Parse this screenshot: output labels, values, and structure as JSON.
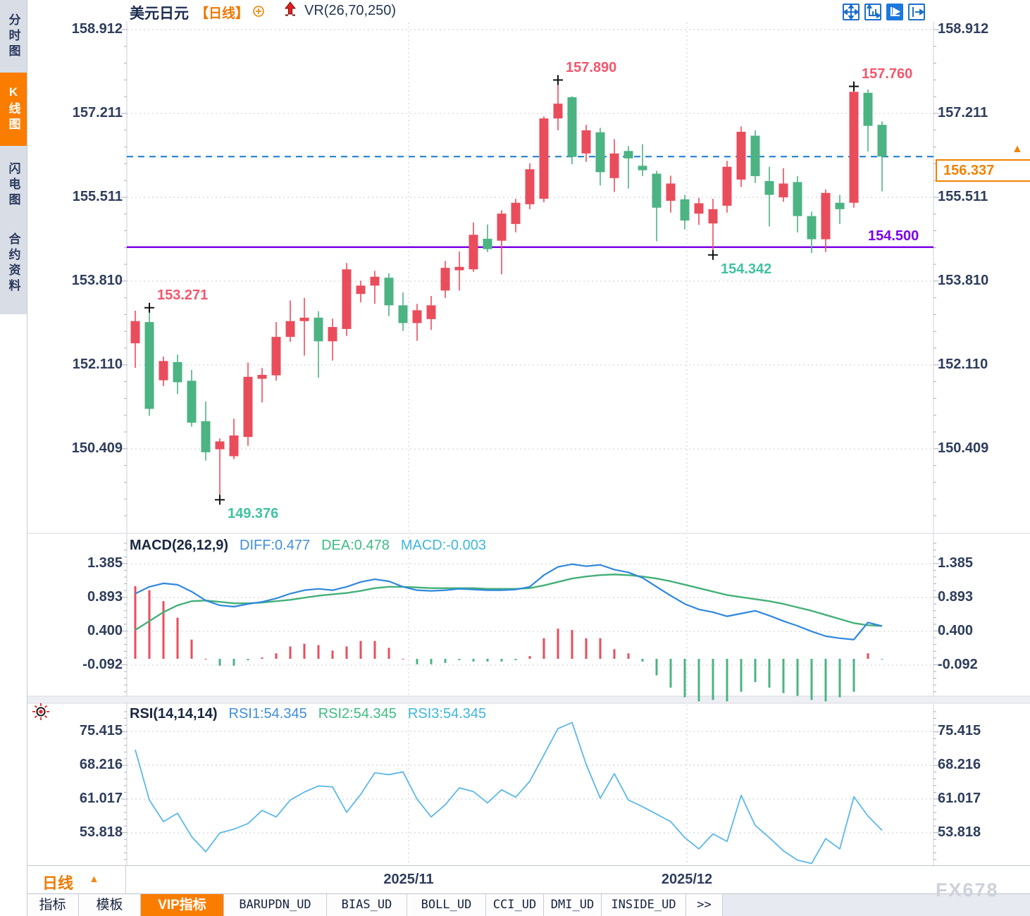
{
  "header": {
    "title": "美元日元",
    "period_tag": "【日线】",
    "indicator": "VR(26,70,250)",
    "plus_icon": "circle-plus",
    "arrow_icon": "red-up-arrow"
  },
  "toolbar": {
    "icons": [
      {
        "name": "crosshair-move",
        "active": false
      },
      {
        "name": "axis-scale",
        "active": false
      },
      {
        "name": "auto-scale-chart",
        "active": true
      },
      {
        "name": "pan-to-latest",
        "active": false
      }
    ]
  },
  "sidebar": {
    "items": [
      {
        "label": "分时图",
        "active": false
      },
      {
        "label": "K线图",
        "active": true
      },
      {
        "label": "闪电图",
        "active": false
      },
      {
        "label": "合约资料",
        "active": false
      }
    ]
  },
  "price_panel": {
    "y_ticks": [
      "158.912",
      "157.211",
      "155.511",
      "153.810",
      "152.110",
      "150.409"
    ],
    "y_values": [
      158.912,
      157.211,
      155.511,
      153.81,
      152.11,
      150.409
    ],
    "current_price": "156.337",
    "current_price_value": 156.337,
    "current_arrow": "▲",
    "support_line": {
      "label": "154.500",
      "value": 154.5
    },
    "annotations": [
      {
        "text": "153.271",
        "candle": 2,
        "pos": "high",
        "color": "pink"
      },
      {
        "text": "149.376",
        "candle": 7,
        "pos": "low",
        "color": "teal"
      },
      {
        "text": "157.890",
        "candle": 31,
        "pos": "high",
        "color": "pink"
      },
      {
        "text": "154.342",
        "candle": 42,
        "pos": "low",
        "color": "teal"
      },
      {
        "text": "157.760",
        "candle": 52,
        "pos": "high",
        "color": "pink"
      }
    ]
  },
  "macd_panel": {
    "title": "MACD(26,12,9)",
    "diff_label": "DIFF:0.477",
    "dea_label": "DEA:0.478",
    "macd_label": "MACD:-0.003",
    "y_ticks": [
      "1.385",
      "0.893",
      "0.400",
      "-0.092"
    ],
    "y_values": [
      1.385,
      0.893,
      0.4,
      -0.092
    ]
  },
  "rsi_panel": {
    "title": "RSI(14,14,14)",
    "rsi1_label": "RSI1:54.345",
    "rsi2_label": "RSI2:54.345",
    "rsi3_label": "RSI3:54.345",
    "y_ticks": [
      "75.415",
      "68.216",
      "61.017",
      "53.818"
    ],
    "y_values": [
      75.415,
      68.216,
      61.017,
      53.818
    ]
  },
  "bottom": {
    "period_label": "日线",
    "period_arrow": "▲",
    "tabs": [
      {
        "label": "指标",
        "active": false,
        "mono": false
      },
      {
        "label": "模板",
        "active": false,
        "mono": false
      },
      {
        "label": "VIP指标",
        "active": true,
        "mono": false
      },
      {
        "label": "BARUPDN_UD",
        "active": false,
        "mono": true
      },
      {
        "label": "BIAS_UD",
        "active": false,
        "mono": true
      },
      {
        "label": "BOLL_UD",
        "active": false,
        "mono": true
      },
      {
        "label": "CCI_UD",
        "active": false,
        "mono": true
      },
      {
        "label": "DMI_UD",
        "active": false,
        "mono": true
      },
      {
        "label": "INSIDE_UD",
        "active": false,
        "mono": true
      },
      {
        "label": ">>",
        "active": false,
        "mono": true
      }
    ]
  },
  "watermark": "FX678",
  "colors": {
    "up": "#e94d5c",
    "down": "#4cb383",
    "blue_dashed_line": "#1778d0",
    "purple_line": "#7b00e8",
    "accent_orange": "#fb7d00",
    "price_box_orange": "#f08200",
    "diff_blue": "#2f87dd",
    "dea_green": "#44b078",
    "rsi_line": "#5cb8e8",
    "annotation_pink": "#f4566c",
    "annotation_teal": "#3fc2a2",
    "axis_text": "#2e3d5c",
    "grid": "#d8dbe0"
  },
  "chart_data": {
    "type": "candlestick",
    "symbol": "美元日元",
    "period": "日线",
    "legend": "VR(26,70,250)",
    "price_ticks": [
      158.912,
      157.211,
      155.511,
      153.81,
      152.11,
      150.409
    ],
    "levels": {
      "current_close": 156.337,
      "support": 154.5
    },
    "x_labels": [
      {
        "text": "2025/11",
        "index": 19.4
      },
      {
        "text": "2025/12",
        "index": 39.15
      }
    ],
    "candles_ohlc": [
      [
        152.55,
        153.21,
        152.05,
        153.0
      ],
      [
        152.98,
        153.271,
        151.08,
        151.22
      ],
      [
        151.8,
        152.28,
        151.68,
        152.19
      ],
      [
        152.17,
        152.32,
        151.52,
        151.76
      ],
      [
        151.79,
        152.01,
        150.86,
        150.94
      ],
      [
        150.97,
        151.37,
        150.17,
        150.34
      ],
      [
        150.4,
        150.62,
        149.376,
        150.56
      ],
      [
        150.26,
        151.02,
        150.2,
        150.68
      ],
      [
        150.65,
        152.16,
        150.47,
        151.87
      ],
      [
        151.83,
        152.05,
        151.35,
        151.91
      ],
      [
        151.9,
        152.98,
        151.79,
        152.68
      ],
      [
        152.68,
        153.42,
        152.58,
        153.0
      ],
      [
        153.0,
        153.47,
        152.3,
        153.07
      ],
      [
        153.07,
        153.2,
        151.85,
        152.59
      ],
      [
        152.59,
        153.05,
        152.2,
        152.88
      ],
      [
        152.84,
        154.18,
        152.7,
        154.05
      ],
      [
        153.55,
        153.82,
        153.38,
        153.72
      ],
      [
        153.72,
        154.02,
        153.35,
        153.9
      ],
      [
        153.88,
        153.97,
        153.1,
        153.32
      ],
      [
        153.32,
        153.58,
        152.8,
        152.96
      ],
      [
        152.96,
        153.35,
        152.6,
        153.22
      ],
      [
        153.04,
        153.51,
        152.82,
        153.32
      ],
      [
        153.62,
        154.22,
        153.47,
        154.08
      ],
      [
        154.03,
        154.41,
        153.62,
        154.1
      ],
      [
        154.05,
        155.0,
        154.0,
        154.75
      ],
      [
        154.67,
        154.96,
        154.4,
        154.46
      ],
      [
        154.63,
        155.25,
        153.95,
        155.18
      ],
      [
        154.97,
        155.48,
        154.8,
        155.4
      ],
      [
        155.37,
        156.2,
        155.27,
        156.08
      ],
      [
        155.48,
        157.15,
        155.41,
        157.11
      ],
      [
        157.11,
        157.89,
        156.87,
        157.41
      ],
      [
        157.54,
        157.56,
        156.18,
        156.33
      ],
      [
        156.4,
        156.98,
        156.23,
        156.87
      ],
      [
        156.83,
        156.92,
        155.75,
        156.02
      ],
      [
        155.9,
        156.69,
        155.62,
        156.4
      ],
      [
        156.45,
        156.55,
        155.69,
        156.3
      ],
      [
        156.15,
        156.59,
        155.94,
        156.06
      ],
      [
        155.99,
        156.05,
        154.62,
        155.3
      ],
      [
        155.44,
        155.95,
        155.2,
        155.79
      ],
      [
        155.47,
        155.56,
        154.86,
        155.04
      ],
      [
        155.18,
        155.5,
        154.95,
        155.39
      ],
      [
        154.98,
        155.48,
        154.342,
        155.27
      ],
      [
        155.34,
        156.25,
        155.2,
        156.13
      ],
      [
        155.87,
        156.95,
        155.72,
        156.84
      ],
      [
        156.76,
        156.87,
        155.8,
        155.94
      ],
      [
        155.84,
        156.13,
        154.92,
        155.56
      ],
      [
        155.51,
        156.1,
        155.42,
        155.79
      ],
      [
        155.82,
        155.94,
        154.8,
        155.13
      ],
      [
        155.13,
        155.22,
        154.38,
        154.66
      ],
      [
        154.66,
        155.67,
        154.4,
        155.6
      ],
      [
        155.4,
        155.56,
        154.97,
        155.27
      ],
      [
        155.4,
        157.76,
        155.3,
        157.65
      ],
      [
        157.63,
        157.7,
        156.44,
        156.96
      ],
      [
        156.98,
        157.05,
        155.63,
        156.337
      ]
    ],
    "macd": {
      "diff": [
        0.95,
        1.05,
        1.1,
        1.08,
        0.98,
        0.85,
        0.78,
        0.76,
        0.8,
        0.83,
        0.88,
        0.95,
        1.0,
        1.02,
        1.0,
        1.05,
        1.12,
        1.16,
        1.13,
        1.05,
        1.0,
        0.99,
        1.0,
        1.02,
        1.01,
        1.0,
        1.0,
        1.01,
        1.05,
        1.22,
        1.34,
        1.38,
        1.35,
        1.37,
        1.3,
        1.26,
        1.18,
        1.05,
        0.92,
        0.8,
        0.72,
        0.68,
        0.62,
        0.66,
        0.7,
        0.63,
        0.55,
        0.48,
        0.4,
        0.33,
        0.3,
        0.28,
        0.53,
        0.477
      ],
      "dea": [
        0.42,
        0.55,
        0.68,
        0.78,
        0.84,
        0.85,
        0.83,
        0.81,
        0.81,
        0.82,
        0.84,
        0.86,
        0.89,
        0.92,
        0.94,
        0.96,
        0.99,
        1.03,
        1.05,
        1.05,
        1.04,
        1.03,
        1.03,
        1.03,
        1.03,
        1.02,
        1.02,
        1.02,
        1.03,
        1.07,
        1.12,
        1.17,
        1.2,
        1.22,
        1.23,
        1.22,
        1.2,
        1.17,
        1.13,
        1.08,
        1.03,
        0.98,
        0.93,
        0.9,
        0.87,
        0.84,
        0.8,
        0.75,
        0.7,
        0.64,
        0.58,
        0.52,
        0.49,
        0.478
      ],
      "hist": [
        1.06,
        1.0,
        0.84,
        0.6,
        0.28,
        0.0,
        -0.1,
        -0.1,
        -0.02,
        0.02,
        0.08,
        0.18,
        0.22,
        0.2,
        0.12,
        0.18,
        0.26,
        0.26,
        0.16,
        0.0,
        -0.08,
        -0.08,
        -0.06,
        -0.02,
        -0.04,
        -0.04,
        -0.04,
        -0.02,
        0.04,
        0.3,
        0.44,
        0.42,
        0.3,
        0.3,
        0.14,
        0.08,
        -0.04,
        -0.24,
        -0.42,
        -0.56,
        -0.62,
        -0.6,
        -0.62,
        -0.48,
        -0.34,
        -0.42,
        -0.5,
        -0.54,
        -0.6,
        -0.62,
        -0.56,
        -0.48,
        0.08,
        -0.003
      ]
    },
    "rsi": [
      71.5,
      60.8,
      56.2,
      58.0,
      53.0,
      49.8,
      53.8,
      54.6,
      55.8,
      58.6,
      57.2,
      60.8,
      62.5,
      63.8,
      63.6,
      58.2,
      62.0,
      66.6,
      66.2,
      66.8,
      61.0,
      57.2,
      59.8,
      63.4,
      62.6,
      60.2,
      63.0,
      61.4,
      64.8,
      70.4,
      76.0,
      77.3,
      68.4,
      61.2,
      66.4,
      60.8,
      59.4,
      57.8,
      56.2,
      52.8,
      50.4,
      53.6,
      52.0,
      61.8,
      55.4,
      52.8,
      50.0,
      48.0,
      47.3,
      52.6,
      50.4,
      61.5,
      57.4,
      54.345
    ]
  }
}
